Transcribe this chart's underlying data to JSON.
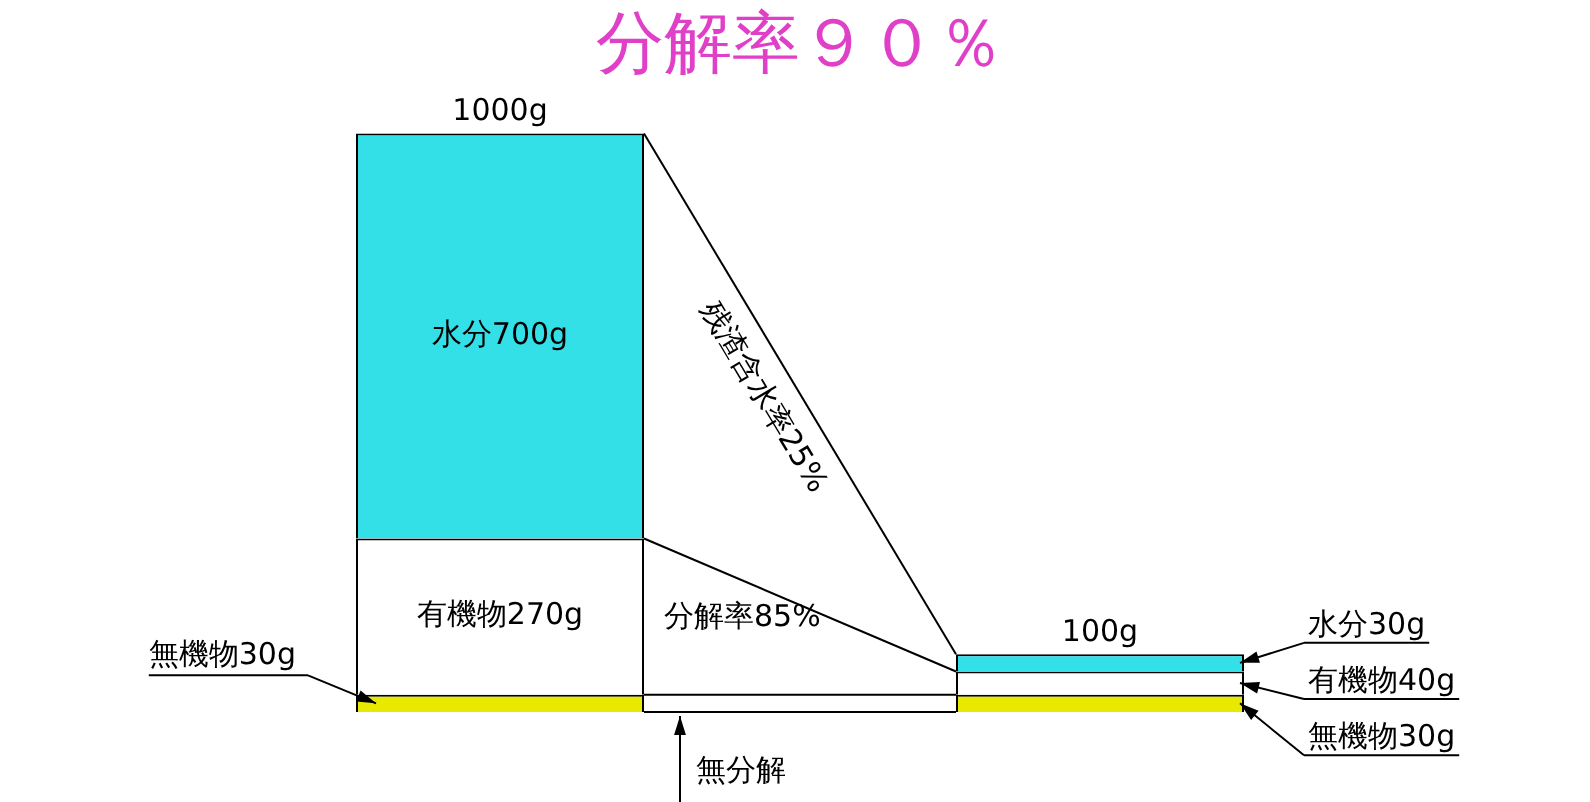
{
  "chart_data": {
    "type": "bar",
    "title": "分解率９０％",
    "categories": [
      null,
      null
    ],
    "stacked": true,
    "series": [
      {
        "color": "#e8e800",
        "values": [
          30,
          30
        ],
        "value_labels": [
          "無機物30g",
          "無機物30g"
        ]
      },
      {
        "color": "#ffffff",
        "values": [
          270,
          40
        ],
        "value_labels": [
          "有機物270g",
          "有機物40g"
        ]
      },
      {
        "color": "#33e0e8",
        "values": [
          700,
          30
        ],
        "value_labels": [
          "水分700g",
          "水分30g"
        ]
      }
    ],
    "totals": [
      "1000g",
      "100g"
    ],
    "annotations": [
      "残渣含水率25%",
      "分解率85%",
      "無分解"
    ]
  }
}
